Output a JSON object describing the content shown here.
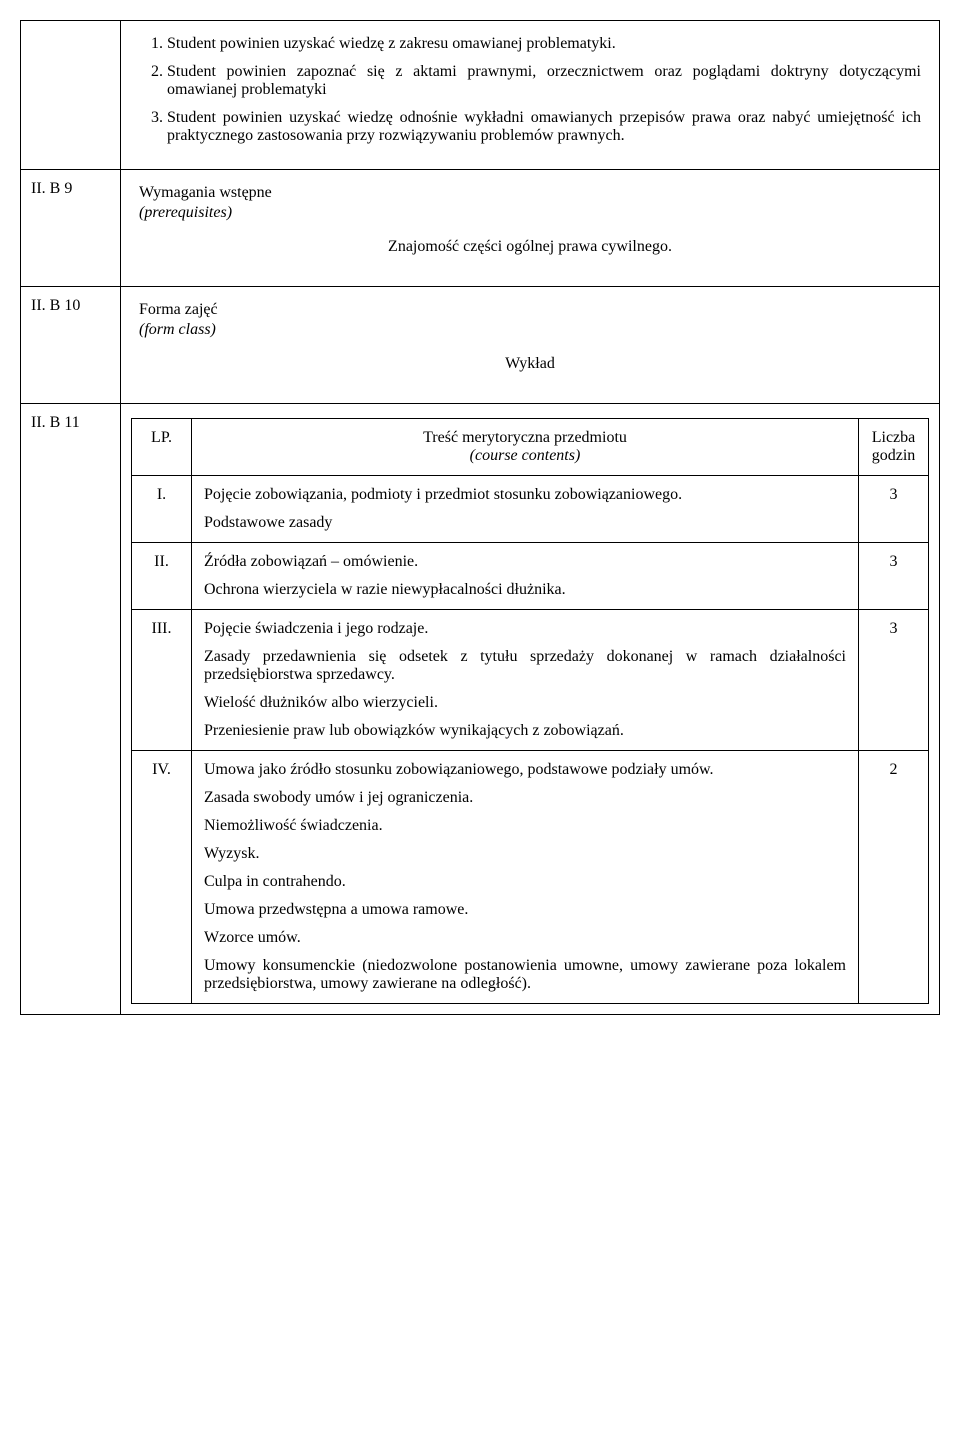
{
  "top_list": {
    "items": [
      "Student powinien uzyskać wiedzę z zakresu omawianej problematyki.",
      "Student powinien zapoznać się z aktami prawnymi, orzecznictwem oraz poglądami doktryny dotyczącymi omawianej problematyki",
      "Student powinien uzyskać wiedzę odnośnie wykładni omawianych przepisów prawa oraz nabyć umiejętność ich praktycznego zastosowania przy rozwiązywaniu problemów prawnych."
    ]
  },
  "b9": {
    "code": "II. B 9",
    "title": "Wymagania wstępne",
    "title_en": "(prerequisites)",
    "content": "Znajomość części ogólnej prawa cywilnego."
  },
  "b10": {
    "code": "II. B 10",
    "title": "Forma zajęć",
    "title_en": "(form class)",
    "content": "Wykład"
  },
  "b11": {
    "code": "II. B 11",
    "header": {
      "lp": "LP.",
      "content": "Treść merytoryczna przedmiotu",
      "content_en": "(course contents)",
      "hours": "Liczba godzin"
    },
    "rows": [
      {
        "lp": "I.",
        "paras": [
          "Pojęcie zobowiązania, podmioty i przedmiot stosunku zobowiązaniowego.",
          "Podstawowe zasady"
        ],
        "hours": "3"
      },
      {
        "lp": "II.",
        "paras": [
          "Źródła zobowiązań – omówienie.",
          "Ochrona wierzyciela w razie niewypłacalności dłużnika."
        ],
        "hours": "3"
      },
      {
        "lp": "III.",
        "paras": [
          "Pojęcie świadczenia i jego rodzaje.",
          "Zasady przedawnienia się odsetek z tytułu sprzedaży dokonanej w ramach działalności przedsiębiorstwa sprzedawcy.",
          "Wielość dłużników albo wierzycieli.",
          "Przeniesienie praw lub obowiązków wynikających z zobowiązań."
        ],
        "hours": "3"
      },
      {
        "lp": "IV.",
        "paras": [
          "Umowa jako źródło stosunku zobowiązaniowego, podstawowe podziały umów.",
          "Zasada swobody umów i jej ograniczenia.",
          "Niemożliwość świadczenia.",
          "Wyzysk.",
          "Culpa in contrahendo.",
          "Umowa przedwstępna a umowa ramowe.",
          "Wzorce umów.",
          "Umowy konsumenckie (niedozwolone postanowienia umowne, umowy zawierane poza lokalem przedsiębiorstwa, umowy zawierane na odległość)."
        ],
        "hours": "2"
      }
    ]
  }
}
